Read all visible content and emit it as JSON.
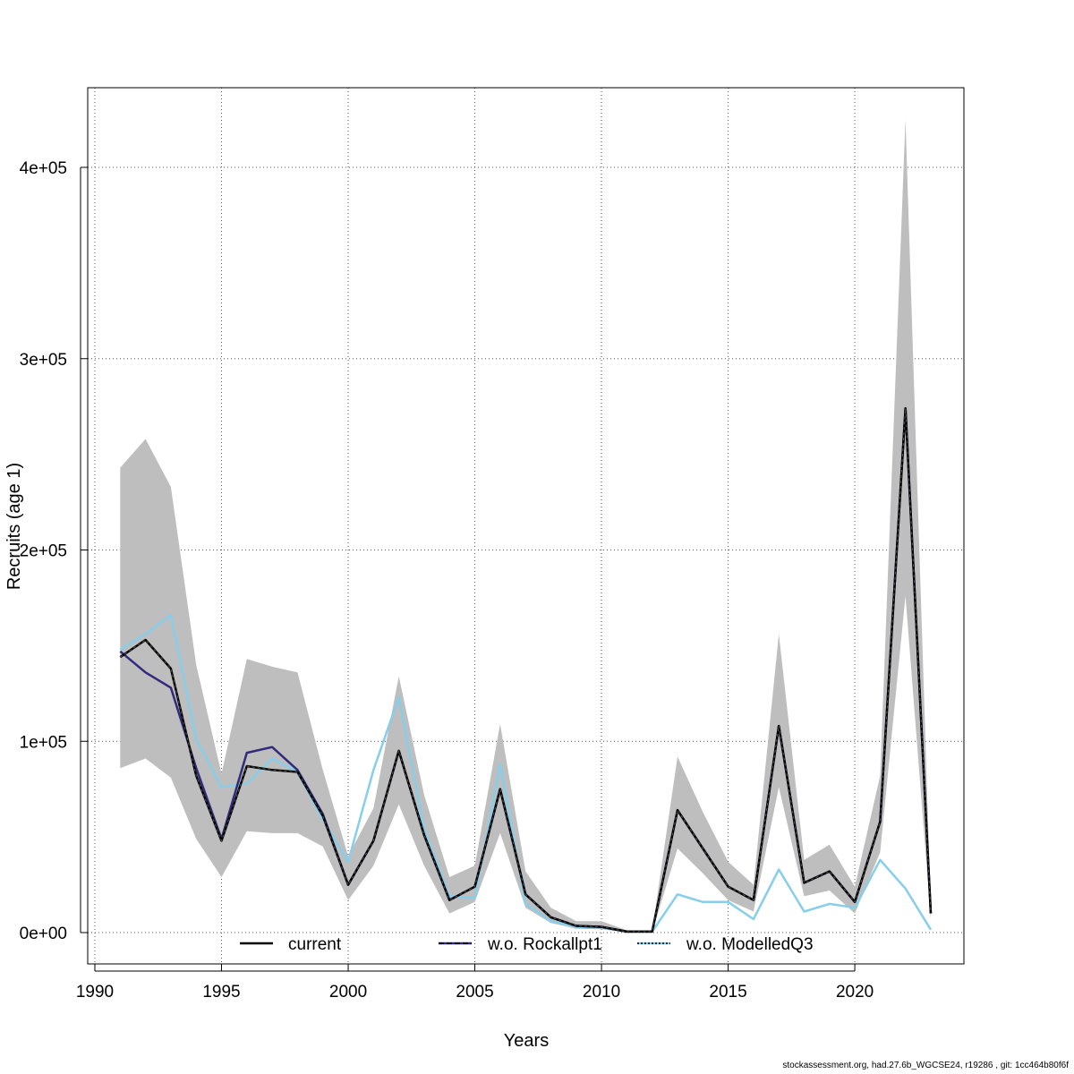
{
  "footer": "stockassessment.org, had.27.6b_WGCSE24, r19286 , git: 1cc464b80f6f",
  "chart_data": {
    "type": "line",
    "title": "",
    "xlabel": "Years",
    "ylabel": "Recruits (age 1)",
    "xlim": [
      1990,
      2024
    ],
    "ylim": [
      0,
      440000
    ],
    "grid": true,
    "x_ticks": [
      1990,
      1995,
      2000,
      2005,
      2010,
      2015,
      2020
    ],
    "x_tick_labels": [
      "1990",
      "1995",
      "2000",
      "2005",
      "2010",
      "2015",
      "2020"
    ],
    "y_ticks": [
      0,
      100000,
      200000,
      300000,
      400000
    ],
    "y_tick_labels": [
      "0e+00",
      "1e+05",
      "2e+05",
      "3e+05",
      "4e+05"
    ],
    "legend_placement": "bottom",
    "x": [
      1991,
      1992,
      1993,
      1994,
      1995,
      1996,
      1997,
      1998,
      1999,
      2000,
      2001,
      2002,
      2003,
      2004,
      2005,
      2006,
      2007,
      2008,
      2009,
      2010,
      2011,
      2012,
      2013,
      2014,
      2015,
      2016,
      2017,
      2018,
      2019,
      2020,
      2021,
      2022,
      2023
    ],
    "band": {
      "color": "#bebebe",
      "upper": [
        243000,
        258000,
        233000,
        140000,
        83000,
        143000,
        139000,
        136000,
        85000,
        40000,
        65000,
        134000,
        72000,
        29000,
        35000,
        109000,
        32000,
        13000,
        6000,
        6000,
        1200,
        1000,
        92000,
        63000,
        37000,
        25000,
        156000,
        38000,
        46000,
        24000,
        82000,
        425000,
        14000
      ],
      "lower": [
        86000,
        91000,
        81000,
        49000,
        29000,
        53000,
        52000,
        52000,
        45000,
        17000,
        35000,
        67000,
        35000,
        10000,
        16000,
        52000,
        13000,
        5000,
        2000,
        1800,
        200,
        200,
        44000,
        31000,
        17000,
        11000,
        76000,
        19000,
        22000,
        10000,
        42000,
        176000,
        7000
      ]
    },
    "series": [
      {
        "name": "current",
        "color": "#000000",
        "width": 2.5,
        "dash": "",
        "values": [
          144000,
          153000,
          138000,
          82000,
          48000,
          87000,
          85000,
          84000,
          61000,
          25000,
          48000,
          95000,
          51000,
          17000,
          24000,
          75000,
          20000,
          8000,
          3500,
          3000,
          500,
          500,
          64000,
          44000,
          24000,
          17000,
          108000,
          26000,
          32000,
          16000,
          58000,
          274000,
          10000
        ]
      },
      {
        "name": "w.o. Rockallpt1",
        "color": "#312a7d",
        "width": 2.5,
        "dash": "",
        "values": [
          147000,
          136000,
          128000,
          86000,
          49000,
          94000,
          97000,
          85000,
          62000,
          25000,
          48000,
          95000,
          51000,
          17000,
          24000,
          75000,
          20000,
          8000,
          3500,
          3000,
          500,
          500,
          64000,
          44000,
          24000,
          17000,
          108000,
          26000,
          32000,
          16000,
          58000,
          274000,
          10000
        ]
      },
      {
        "name": "w.o. ModelledQ3",
        "color": "#87ceeb",
        "width": 2.5,
        "dash": "",
        "values": [
          148000,
          156000,
          166000,
          101000,
          76000,
          78000,
          91000,
          84000,
          59000,
          37000,
          85000,
          123000,
          54000,
          19000,
          18000,
          88000,
          15000,
          6000,
          3000,
          2500,
          500,
          500,
          20000,
          16000,
          16000,
          7000,
          33000,
          11000,
          15000,
          13000,
          38000,
          23000,
          1500
        ]
      }
    ],
    "legend": [
      {
        "label": "current",
        "color": "#000000",
        "dash": ""
      },
      {
        "label": "w.o. Rockallpt1",
        "color": "#000000",
        "dash": "6,3",
        "overlay_color": "#312a7d"
      },
      {
        "label": "w.o. ModelledQ3",
        "color": "#000000",
        "dash": "2,2",
        "overlay_color": "#87ceeb"
      }
    ]
  }
}
